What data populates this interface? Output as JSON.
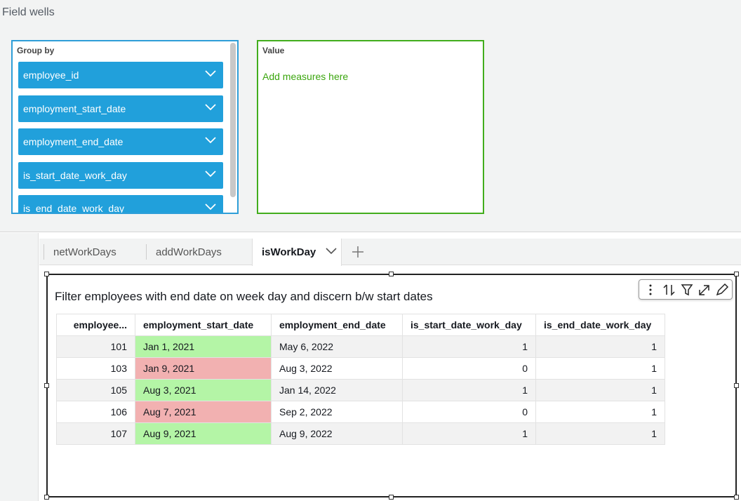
{
  "field_wells": {
    "title": "Field wells",
    "group_by": {
      "label": "Group by",
      "items": [
        "employee_id",
        "employment_start_date",
        "employment_end_date",
        "is_start_date_work_day",
        "is_end_date_work_day"
      ]
    },
    "value": {
      "label": "Value",
      "placeholder": "Add measures here"
    }
  },
  "tabs": [
    "netWorkDays",
    "addWorkDays",
    "isWorkDay"
  ],
  "visual": {
    "title": "Filter employees with end date on week day and discern b/w start dates",
    "table": {
      "columns": [
        "employee...",
        "employment_start_date",
        "employment_end_date",
        "is_start_date_work_day",
        "is_end_date_work_day"
      ],
      "rows": [
        [
          101,
          "Jan 1, 2021",
          "May 6, 2022",
          1,
          1
        ],
        [
          103,
          "Jan 9, 2021",
          "Aug 3, 2022",
          0,
          1
        ],
        [
          105,
          "Aug 3, 2021",
          "Jan 14, 2022",
          1,
          1
        ],
        [
          106,
          "Aug 7, 2021",
          "Sep 2, 2022",
          0,
          1
        ],
        [
          107,
          "Aug 9, 2021",
          "Aug 9, 2022",
          1,
          1
        ]
      ],
      "start_date_colors": [
        "#b4f5a6",
        "#f2b1b1",
        "#b4f5a6",
        "#f2b1b1",
        "#b4f5a6"
      ]
    }
  }
}
